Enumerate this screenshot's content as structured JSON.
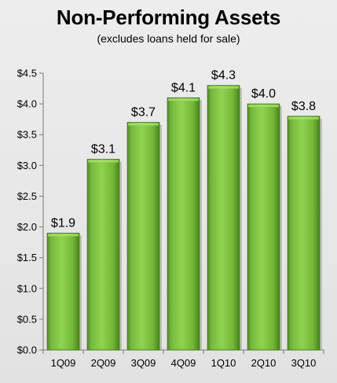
{
  "chart_data": {
    "type": "bar",
    "title": "Non-Performing Assets",
    "subtitle": "(excludes loans held for sale)",
    "categories": [
      "1Q09",
      "2Q09",
      "3Q09",
      "4Q09",
      "1Q10",
      "2Q10",
      "3Q10"
    ],
    "values": [
      1.9,
      3.1,
      3.7,
      4.1,
      4.3,
      4.0,
      3.8
    ],
    "value_labels": [
      "$1.9",
      "$3.1",
      "$3.7",
      "$4.1",
      "$4.3",
      "$4.0",
      "$3.8"
    ],
    "yticks": [
      0.0,
      0.5,
      1.0,
      1.5,
      2.0,
      2.5,
      3.0,
      3.5,
      4.0,
      4.5
    ],
    "ytick_labels": [
      "$0.0",
      "$0.5",
      "$1.0",
      "$1.5",
      "$2.0",
      "$2.5",
      "$3.0",
      "$3.5",
      "$4.0",
      "$4.5"
    ],
    "ylim": [
      0,
      4.5
    ],
    "xlabel": "",
    "ylabel": "",
    "grid": false,
    "legend": "none",
    "bar_color": "#7cc242",
    "bar_color_dark": "#4e8a1f",
    "bar_color_light": "#a6de6a",
    "background_color": "#e6e6e6"
  }
}
